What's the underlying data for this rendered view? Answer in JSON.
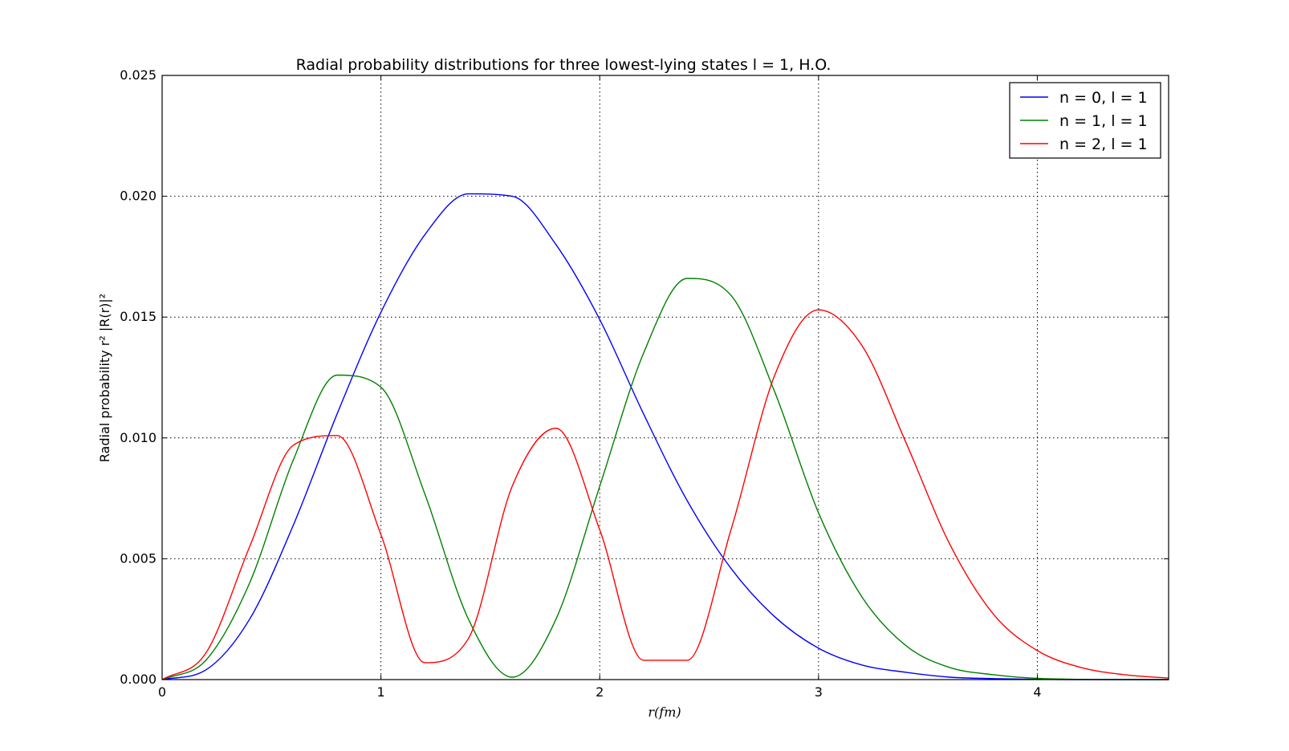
{
  "chart_data": {
    "type": "line",
    "title": "Radial probability distributions for three lowest-lying states l = 1, H.O.",
    "xlabel": "r(fm)",
    "ylabel": "Radial probability r² |R(r)|²",
    "xlim": [
      0,
      4.6
    ],
    "ylim": [
      0,
      0.025
    ],
    "grid": true,
    "legend_position": "top-right",
    "xticks": [
      0,
      1,
      2,
      3,
      4
    ],
    "xtick_labels": [
      "0",
      "1",
      "2",
      "3",
      "4"
    ],
    "yticks": [
      0,
      0.005,
      0.01,
      0.015,
      0.02,
      0.025
    ],
    "ytick_labels": [
      "0.000",
      "0.005",
      "0.010",
      "0.015",
      "0.020",
      "0.025"
    ],
    "x": [
      0,
      0.2,
      0.4,
      0.6,
      0.8,
      1.0,
      1.2,
      1.4,
      1.6,
      1.8,
      2.0,
      2.2,
      2.4,
      2.6,
      2.8,
      3.0,
      3.2,
      3.4,
      3.6,
      3.8,
      4.0,
      4.2,
      4.4,
      4.6
    ],
    "series": [
      {
        "name": "n = 0, l = 1",
        "color": "#0000ff",
        "values": [
          0,
          0.0004,
          0.0025,
          0.0064,
          0.011,
          0.0152,
          0.0184,
          0.0201,
          0.02,
          0.018,
          0.0149,
          0.011,
          0.0074,
          0.0046,
          0.0026,
          0.0013,
          0.0006,
          0.0003,
          0.0001,
          4e-05,
          1e-05,
          0,
          0,
          0
        ]
      },
      {
        "name": "n = 1, l = 1",
        "color": "#008000",
        "values": [
          0,
          0.0008,
          0.004,
          0.0091,
          0.0126,
          0.0121,
          0.0077,
          0.0025,
          0.0001,
          0.0025,
          0.008,
          0.0135,
          0.0166,
          0.0159,
          0.0119,
          0.0069,
          0.0034,
          0.0014,
          0.0005,
          0.0002,
          5e-05,
          1e-05,
          0,
          0
        ]
      },
      {
        "name": "n = 2, l = 1",
        "color": "#ff0000",
        "values": [
          0,
          0.0011,
          0.0055,
          0.0097,
          0.0101,
          0.006,
          0.0007,
          0.0017,
          0.008,
          0.0104,
          0.0062,
          0.0008,
          0.0008,
          0.0062,
          0.0126,
          0.0153,
          0.0138,
          0.0098,
          0.0056,
          0.0027,
          0.0012,
          0.0005,
          0.0002,
          6e-05
        ]
      }
    ]
  }
}
